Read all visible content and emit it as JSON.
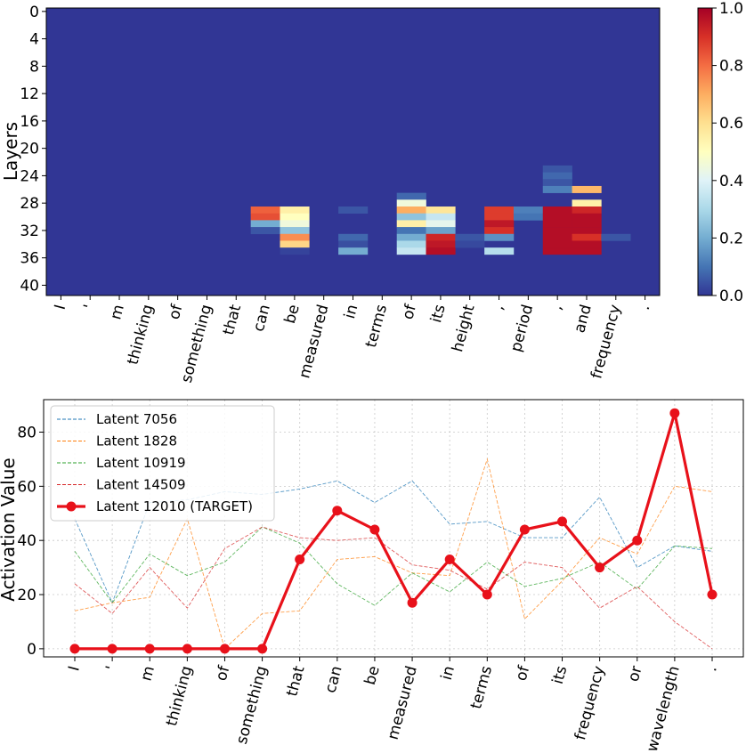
{
  "chart_data": [
    {
      "type": "heatmap",
      "title": "",
      "xlabel": "",
      "ylabel": "Layers",
      "tokens": [
        "I",
        "'",
        "m",
        "thinking",
        "of",
        "something",
        "that",
        "can",
        "be",
        "measured",
        "in",
        "terms",
        "of",
        "its",
        "height",
        ",",
        "period",
        ",",
        "and",
        "frequency",
        "."
      ],
      "y_ticks": [
        0,
        4,
        8,
        12,
        16,
        20,
        24,
        28,
        32,
        36,
        40
      ],
      "n_layers": 42,
      "colorbar": {
        "min": 0.0,
        "max": 1.0,
        "ticks": [
          "0.0",
          "0.2",
          "0.4",
          "0.6",
          "0.8",
          "1.0"
        ],
        "colormap": "RdYlBu_r"
      },
      "cells": [
        [
          7,
          29,
          0.82
        ],
        [
          7,
          30,
          0.85
        ],
        [
          7,
          31,
          0.2
        ],
        [
          7,
          32,
          0.05
        ],
        [
          8,
          29,
          0.55
        ],
        [
          8,
          30,
          0.5
        ],
        [
          8,
          31,
          0.45
        ],
        [
          8,
          32,
          0.25
        ],
        [
          8,
          33,
          0.75
        ],
        [
          8,
          34,
          0.62
        ],
        [
          8,
          35,
          0.02
        ],
        [
          10,
          29,
          0.05
        ],
        [
          10,
          33,
          0.08
        ],
        [
          10,
          34,
          0.04
        ],
        [
          10,
          35,
          0.2
        ],
        [
          12,
          27,
          0.08
        ],
        [
          12,
          28,
          0.45
        ],
        [
          12,
          29,
          0.7
        ],
        [
          12,
          30,
          0.25
        ],
        [
          12,
          31,
          0.55
        ],
        [
          12,
          32,
          0.1
        ],
        [
          12,
          33,
          0.2
        ],
        [
          12,
          34,
          0.3
        ],
        [
          12,
          35,
          0.35
        ],
        [
          13,
          29,
          0.58
        ],
        [
          13,
          30,
          0.35
        ],
        [
          13,
          31,
          0.42
        ],
        [
          13,
          32,
          0.18
        ],
        [
          13,
          33,
          0.92
        ],
        [
          13,
          34,
          0.95
        ],
        [
          13,
          35,
          0.97
        ],
        [
          14,
          33,
          0.05
        ],
        [
          14,
          34,
          0.03
        ],
        [
          15,
          29,
          0.88
        ],
        [
          15,
          30,
          0.88
        ],
        [
          15,
          31,
          0.95
        ],
        [
          15,
          32,
          0.9
        ],
        [
          15,
          33,
          0.15
        ],
        [
          15,
          35,
          0.32
        ],
        [
          16,
          29,
          0.12
        ],
        [
          16,
          30,
          0.1
        ],
        [
          17,
          23,
          0.05
        ],
        [
          17,
          24,
          0.08
        ],
        [
          17,
          25,
          0.05
        ],
        [
          17,
          26,
          0.12
        ],
        [
          17,
          29,
          0.97
        ],
        [
          17,
          30,
          0.97
        ],
        [
          17,
          31,
          0.97
        ],
        [
          17,
          32,
          0.97
        ],
        [
          17,
          33,
          0.97
        ],
        [
          17,
          34,
          0.97
        ],
        [
          17,
          35,
          0.97
        ],
        [
          18,
          26,
          0.68
        ],
        [
          18,
          28,
          0.55
        ],
        [
          18,
          29,
          0.92
        ],
        [
          18,
          30,
          0.97
        ],
        [
          18,
          31,
          0.97
        ],
        [
          18,
          32,
          0.97
        ],
        [
          18,
          33,
          0.9
        ],
        [
          18,
          34,
          0.97
        ],
        [
          18,
          35,
          0.97
        ],
        [
          19,
          33,
          0.05
        ]
      ]
    },
    {
      "type": "line",
      "title": "",
      "xlabel": "",
      "ylabel": "Activation Value",
      "categories": [
        "I",
        "'",
        "m",
        "thinking",
        "of",
        "something",
        "that",
        "can",
        "be",
        "measured",
        "in",
        "terms",
        "of",
        "its",
        "frequency",
        "or",
        "wavelength",
        "."
      ],
      "y_ticks": [
        0,
        20,
        40,
        60,
        80
      ],
      "ylim": [
        -3,
        92
      ],
      "grid": true,
      "legend": "top-left",
      "series": [
        {
          "name": "Latent 7056",
          "color": "#1f77b4",
          "style": "dashed",
          "values": [
            48,
            17,
            54,
            55,
            58,
            57,
            59,
            62,
            54,
            62,
            46,
            47,
            41,
            41,
            56,
            30,
            38,
            36
          ]
        },
        {
          "name": "Latent 1828",
          "color": "#ff7f0e",
          "style": "dashed",
          "values": [
            14,
            17,
            19,
            48,
            0,
            13,
            14,
            33,
            34,
            28,
            27,
            70,
            11,
            25,
            41,
            35,
            60,
            58
          ]
        },
        {
          "name": "Latent 10919",
          "color": "#2ca02c",
          "style": "dashed",
          "values": [
            36,
            17,
            35,
            27,
            32,
            45,
            39,
            24,
            16,
            28,
            21,
            32,
            23,
            26,
            32,
            22,
            38,
            37
          ]
        },
        {
          "name": "Latent 14509",
          "color": "#d62728",
          "style": "dashed",
          "values": [
            24,
            13,
            30,
            15,
            37,
            45,
            41,
            40,
            41,
            31,
            29,
            22,
            32,
            30,
            15,
            23,
            10,
            0
          ]
        },
        {
          "name": "Latent 12010 (TARGET)",
          "color": "#e8111a",
          "style": "solid",
          "target": true,
          "values": [
            0,
            0,
            0,
            0,
            0,
            0,
            33,
            51,
            44,
            17,
            33,
            20,
            44,
            47,
            30,
            40,
            87,
            20
          ]
        }
      ]
    }
  ]
}
